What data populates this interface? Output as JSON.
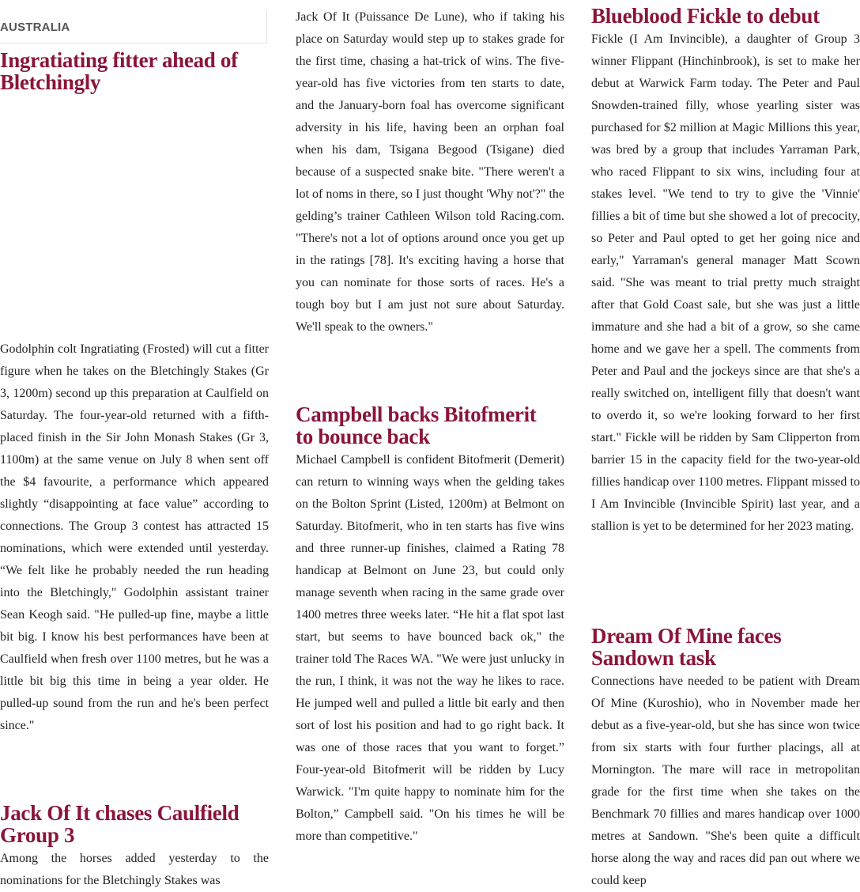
{
  "section_label": "AUSTRALIA",
  "colors": {
    "headline": "#8a1538",
    "body": "#222222",
    "section": "#555555"
  },
  "articles": [
    {
      "headline": "Ingratiating fitter ahead of Bletchingly",
      "body": "Godolphin colt Ingratiating (Frosted) will cut a fitter figure when he takes on the Bletchingly Stakes (Gr 3, 1200m) second up this preparation at Caulfield on Saturday. The four-year-old returned with a fifth-placed finish in the Sir John Monash Stakes (Gr 3, 1100m) at the same venue on July 8 when sent off the $4 favourite, a performance which appeared slightly “disappointing at face value” according to connections. The Group 3 contest has attracted 15 nominations, which were extended until yesterday. “We felt like he probably needed the run heading into the Bletchingly,\" Godolphin assistant trainer Sean Keogh said. \"He pulled-up fine, maybe a little bit big. I know his best performances have been at Caulfield when fresh over 1100 metres, but he was a little bit big this time in being a year older. He pulled-up sound from the run and he's been perfect since.\""
    },
    {
      "headline": "Jack Of It chases Caulfield Group 3",
      "body": "Among the horses added yesterday to the nominations for the Bletchingly Stakes was",
      "body_continued": "Jack Of It (Puissance De Lune), who if taking his place on Saturday would step up to stakes grade for the first time, chasing a hat-trick of wins. The five-year-old has five victories from ten starts to date, and the January-born foal has overcome significant adversity in his life, having been an orphan foal when his dam, Tsigana Begood (Tsigane) died because of a suspected snake bite. \"There weren't a lot of noms in there, so I just thought 'Why not'?\" the gelding’s trainer Cathleen Wilson told Racing.com. \"There's not a lot of options around once you get up in the ratings [78]. It's exciting having a horse that you can nominate for those sorts of races. He's a tough boy but I am just not sure about Saturday. We'll speak to the owners.\""
    },
    {
      "headline": "Campbell backs Bitofmerit to bounce back",
      "body": "Michael Campbell is confident Bitofmerit (Demerit) can return to winning ways when the gelding takes on the Bolton Sprint (Listed, 1200m) at Belmont on Saturday. Bitofmerit, who in ten starts has five wins and three runner-up finishes, claimed a Rating 78 handicap at Belmont on June 23, but could only manage seventh when racing in the same grade over 1400 metres three weeks later.  “He hit a flat spot last start, but seems to have bounced back ok,\" the trainer told The Races WA. \"We were just unlucky in the run, I think, it was not the way he likes to race. He jumped well and pulled a little bit early and then sort of lost his position and had to go right back. It was one of those races that you want to forget.” Four-year-old Bitofmerit will be ridden by Lucy Warwick. \"I'm quite happy to nominate him for the Bolton,” Campbell said. \"On his times he will be more than competitive.\""
    },
    {
      "headline": "Blueblood Fickle to debut",
      "body": "Fickle (I Am Invincible), a daughter of Group 3 winner Flippant (Hinchinbrook), is set to make her debut at Warwick Farm today. The Peter and Paul Snowden-trained filly, whose yearling sister was purchased for $2 million at Magic Millions this year, was bred by a group that includes Yarraman Park, who raced Flippant to six wins, including four at stakes level. \"We tend to try to give the 'Vinnie' fillies a bit of time but she showed a lot of precocity, so Peter and Paul opted to get her going nice and early,\" Yarraman's general manager Matt Scown said. \"She was meant to trial pretty much straight after that Gold Coast sale, but she was just a little immature and she had a bit of a grow, so she came home and we gave her a spell. The comments from Peter and Paul and the jockeys since are that she's a really switched on, intelligent filly that doesn't want to overdo it, so we're looking forward to her first start.\" Fickle will be ridden by Sam Clipperton from barrier 15 in the capacity field for the two-year-old fillies handicap over 1100 metres. Flippant missed to I Am Invincible (Invincible Spirit) last year, and a stallion is yet to be determined for her 2023 mating."
    },
    {
      "headline": "Dream Of Mine faces Sandown task",
      "body": "Connections have needed to be patient with Dream Of Mine (Kuroshio), who in November made her debut as a five-year-old, but she has since won twice from six starts with four further placings, all at Mornington. The mare will race in metropolitan grade for the first time when she takes on the Benchmark 70 fillies and mares handicap over 1000 metres at Sandown. \"She's been quite a difficult horse along the way and races did pan out where we could keep"
    }
  ]
}
